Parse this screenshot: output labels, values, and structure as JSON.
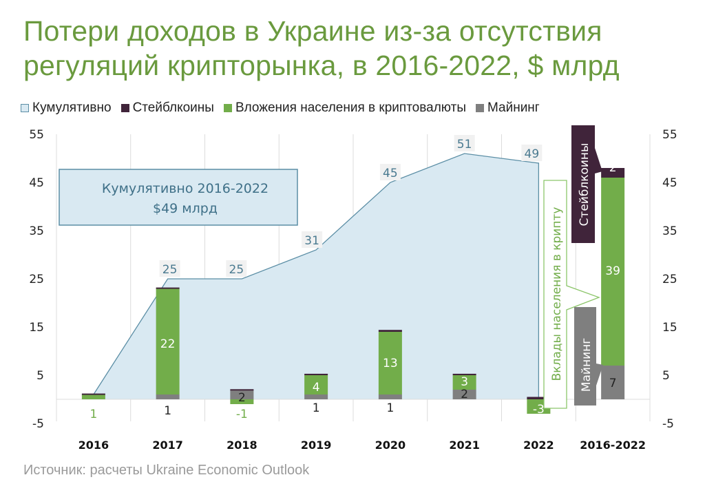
{
  "title": {
    "line1": "Потери доходов в Украине из-за отсутствия",
    "line2": "регуляций крипторынка, в 2016-2022, $ млрд"
  },
  "legend": [
    {
      "label": "Кумулятивно",
      "color": "#d9e9f2",
      "border": "#5b8ea5"
    },
    {
      "label": "Стейблкоины",
      "color": "#40243a"
    },
    {
      "label": "Вложения населения в криптовалюты",
      "color": "#72ad4a"
    },
    {
      "label": "Майнинг",
      "color": "#7f7f7f"
    }
  ],
  "annotation_box": {
    "line1": "Кумулятивно 2016-2022",
    "line2": "$49 млрд"
  },
  "callouts": {
    "stablecoins": "Стейблкоины",
    "investments": "Вклады населения в крипту",
    "mining": "Майнинг"
  },
  "source": "Источник: расчеты Ukraine Economic Outlook",
  "colors": {
    "title": "#6a9a3e",
    "cumulative_fill": "#d9e9f2",
    "cumulative_line": "#5b8ea5",
    "stablecoins": "#40243a",
    "investments": "#72ad4a",
    "mining": "#7f7f7f",
    "grid": "#dcdcdc"
  },
  "chart_data": {
    "type": "bar",
    "title": "Потери доходов в Украине из-за отсутствия регуляций крипторынка, в 2016-2022, $ млрд",
    "xlabel": "",
    "ylabel": "",
    "ylim": [
      -5,
      55
    ],
    "yticks": [
      55,
      45,
      35,
      25,
      15,
      5,
      -5
    ],
    "grid": "vertical",
    "legend_position": "top",
    "categories": [
      "2016",
      "2017",
      "2018",
      "2019",
      "2020",
      "2021",
      "2022",
      "2016-2022"
    ],
    "series": [
      {
        "name": "Майнинг",
        "type": "stacked-bar",
        "values": [
          0,
          1,
          2,
          1,
          1,
          2,
          0,
          7
        ],
        "labels": [
          "",
          "1",
          "2",
          "1",
          "1",
          "2",
          "",
          "7"
        ]
      },
      {
        "name": "Вложения населения в криптовалюты",
        "type": "stacked-bar",
        "values": [
          1,
          22,
          -1,
          4,
          13,
          3,
          -3,
          39
        ],
        "labels": [
          "1",
          "22",
          "-1",
          "4",
          "13",
          "3",
          "-3",
          "39"
        ]
      },
      {
        "name": "Стейблкоины",
        "type": "stacked-bar",
        "values": [
          0.2,
          0.2,
          0.1,
          0.3,
          0.4,
          0.3,
          0.5,
          2
        ],
        "labels": [
          "",
          "",
          "",
          "",
          "",
          "",
          "",
          "2"
        ]
      },
      {
        "name": "Кумулятивно",
        "type": "area",
        "values": [
          1,
          25,
          25,
          31,
          45,
          51,
          49
        ],
        "labels": [
          "",
          "25",
          "25",
          "31",
          "45",
          "51",
          "49"
        ]
      }
    ]
  }
}
